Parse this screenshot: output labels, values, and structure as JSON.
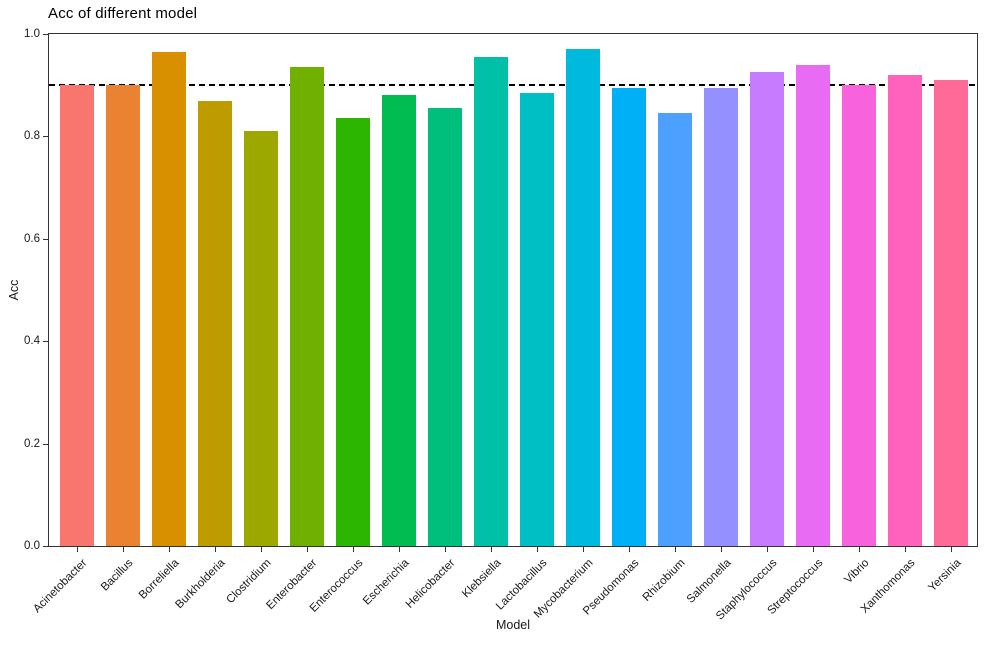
{
  "chart_data": {
    "type": "bar",
    "title": "Acc of different model",
    "xlabel": "Model",
    "ylabel": "Acc",
    "ylim": [
      0.0,
      1.0
    ],
    "ytick_labels": [
      "0.0",
      "0.2",
      "0.4",
      "0.6",
      "0.8",
      "1.0"
    ],
    "grid": false,
    "legend_position": "none",
    "panel_border": true,
    "reference_line": {
      "y": 0.9,
      "style": "dashed",
      "color": "#000000"
    },
    "categories": [
      "Acinetobacter",
      "Bacillus",
      "Borreliella",
      "Burkholderia",
      "Clostridium",
      "Enterobacter",
      "Enterococcus",
      "Escherichia",
      "Helicobacter",
      "Klebsiella",
      "Lactobacillus",
      "Mycobacterium",
      "Pseudomonas",
      "Rhizobium",
      "Salmonella",
      "Staphylococcus",
      "Streptococcus",
      "Vibrio",
      "Xanthomonas",
      "Yersinia"
    ],
    "values": [
      0.9,
      0.9,
      0.965,
      0.87,
      0.81,
      0.935,
      0.835,
      0.88,
      0.855,
      0.955,
      0.885,
      0.97,
      0.895,
      0.845,
      0.895,
      0.925,
      0.94,
      0.9,
      0.92,
      0.91
    ],
    "colors": [
      "#F8766D",
      "#EA8331",
      "#D89000",
      "#BE9C00",
      "#9CA700",
      "#6FB000",
      "#2CB600",
      "#00BC51",
      "#00BF7D",
      "#00C1A7",
      "#00BFC4",
      "#00BADE",
      "#00B0F6",
      "#4CA0FF",
      "#9590FF",
      "#C77CFF",
      "#E76BF3",
      "#F862DD",
      "#FF62BC",
      "#FF6A98"
    ]
  }
}
